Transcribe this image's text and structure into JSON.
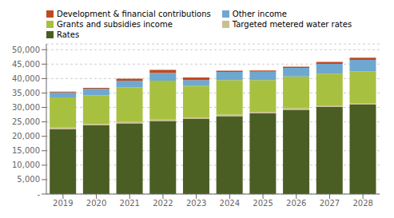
{
  "chart_data": {
    "type": "bar",
    "stacked": true,
    "grid": true,
    "legend": "upper left",
    "categories": [
      "2019",
      "2020",
      "2021",
      "2022",
      "2023",
      "2024",
      "2025",
      "2026",
      "2027",
      "2028"
    ],
    "series": [
      {
        "name": "Rates",
        "color": "#4a5e23",
        "values": [
          22500,
          23800,
          24500,
          25300,
          26000,
          27000,
          28000,
          29200,
          30200,
          31000
        ]
      },
      {
        "name": "Targeted metered water rates",
        "color": "#c8c090",
        "values": [
          500,
          500,
          500,
          500,
          500,
          500,
          500,
          500,
          500,
          500
        ]
      },
      {
        "name": "Grants and subsidies income",
        "color": "#a8c040",
        "values": [
          10500,
          9900,
          12000,
          13500,
          11000,
          12000,
          11000,
          11000,
          11000,
          11000
        ]
      },
      {
        "name": "Other income",
        "color": "#6ea8d0",
        "values": [
          1700,
          2300,
          2300,
          2700,
          2000,
          2800,
          2900,
          3000,
          3400,
          4000
        ]
      },
      {
        "name": "Development & financial contributions",
        "color": "#c04a20",
        "values": [
          300,
          300,
          700,
          1000,
          900,
          400,
          400,
          400,
          700,
          700
        ]
      }
    ],
    "ylim": [
      0,
      52000
    ],
    "yticks": [
      {
        "value": 0,
        "label": "-"
      },
      {
        "value": 5000,
        "label": "5,000"
      },
      {
        "value": 10000,
        "label": "10,000"
      },
      {
        "value": 15000,
        "label": "15,000"
      },
      {
        "value": 20000,
        "label": "20,000"
      },
      {
        "value": 25000,
        "label": "25,000"
      },
      {
        "value": 30000,
        "label": "30,000"
      },
      {
        "value": 35000,
        "label": "35,000"
      },
      {
        "value": 40000,
        "label": "40,000"
      },
      {
        "value": 45000,
        "label": "45,000"
      },
      {
        "value": 50000,
        "label": "50,000"
      }
    ]
  }
}
